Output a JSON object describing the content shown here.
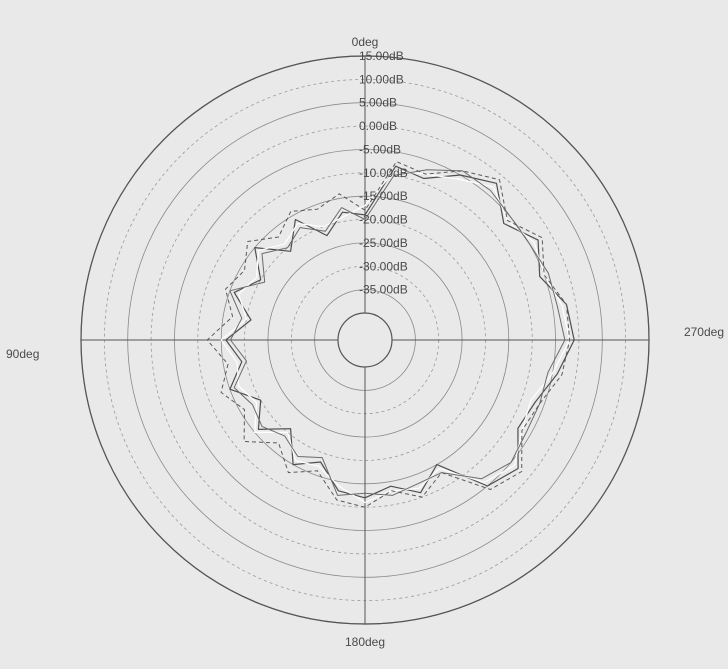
{
  "chart_data": {
    "type": "line",
    "projection": "polar",
    "title": "",
    "angle_direction": "counterclockwise",
    "angle_labels": [
      {
        "deg": 0,
        "text": "0deg"
      },
      {
        "deg": 90,
        "text": "90deg"
      },
      {
        "deg": 180,
        "text": "180deg"
      },
      {
        "deg": 270,
        "text": "270deg"
      }
    ],
    "radial_ticks": [
      {
        "value": 15,
        "text": "15.00dB"
      },
      {
        "value": 10,
        "text": "10.00dB"
      },
      {
        "value": 5,
        "text": "5.00dB"
      },
      {
        "value": 0,
        "text": "0.00dB"
      },
      {
        "value": -5,
        "text": "-5.00dB"
      },
      {
        "value": -10,
        "text": "-10.00dB"
      },
      {
        "value": -15,
        "text": "-15.00dB"
      },
      {
        "value": -20,
        "text": "-20.00dB"
      },
      {
        "value": -25,
        "text": "-25.00dB"
      },
      {
        "value": -30,
        "text": "-30.00dB"
      },
      {
        "value": -35,
        "text": "-35.00dB"
      }
    ],
    "rlim": [
      -40,
      15
    ],
    "grid": true,
    "legend": "none",
    "colors": {
      "background": "#e9e9e9",
      "axis": "#555555",
      "grid_solid": "#8a8a8a",
      "grid_dashed": "#9a9a9a",
      "text": "#4a4a4a"
    },
    "series": [
      {
        "style": {
          "color": "#4f4f4f",
          "dash": "",
          "width": 1.2
        },
        "angles": [
          0,
          10,
          20,
          30,
          40,
          50,
          60,
          70,
          80,
          90,
          100,
          110,
          120,
          130,
          140,
          150,
          160,
          170,
          180,
          190,
          200,
          210,
          220,
          230,
          240,
          250,
          260,
          270,
          280,
          290,
          300,
          310,
          320,
          330,
          340,
          350,
          360
        ],
        "values": [
          -19,
          -18,
          -22,
          -16,
          -21,
          -15,
          -20,
          -16,
          -21,
          -16,
          -19,
          -15,
          -20,
          -16,
          -21,
          -15,
          -18,
          -13,
          -12,
          -14,
          -11,
          -15,
          -5,
          -3,
          -8,
          -7,
          -4,
          -1,
          -2,
          -6,
          -3,
          -7,
          -2,
          -5,
          -9,
          -8,
          -19
        ]
      },
      {
        "style": {
          "color": "#ffffff",
          "dash": "",
          "width": 1.2
        },
        "angles": [
          0,
          10,
          20,
          30,
          40,
          50,
          60,
          70,
          80,
          90,
          100,
          110,
          120,
          130,
          140,
          150,
          160,
          170,
          180,
          190,
          200,
          210,
          220,
          230,
          240,
          250,
          260,
          270,
          280,
          290,
          300,
          310,
          320,
          330,
          340,
          350,
          360
        ],
        "values": [
          -17,
          -19,
          -20,
          -17,
          -19,
          -16,
          -19,
          -17,
          -20,
          -15,
          -18,
          -17,
          -19,
          -15,
          -20,
          -16,
          -17,
          -14,
          -11,
          -13,
          -12,
          -14,
          -6,
          -4,
          -7,
          -8,
          -5,
          -2,
          -3,
          -5,
          -4,
          -6,
          -3,
          -6,
          -8,
          -9,
          -17
        ]
      },
      {
        "style": {
          "color": "#6b6b6b",
          "dash": "",
          "width": 1.0
        },
        "angles": [
          0,
          10,
          20,
          30,
          40,
          50,
          60,
          70,
          80,
          90,
          100,
          110,
          120,
          130,
          140,
          150,
          160,
          170,
          180,
          190,
          200,
          210,
          220,
          230,
          240,
          250,
          260,
          270,
          280,
          290,
          300,
          310,
          320,
          330,
          340,
          350,
          360
        ],
        "values": [
          -20,
          -17,
          -21,
          -18,
          -20,
          -17,
          -21,
          -15,
          -19,
          -17,
          -20,
          -16,
          -18,
          -17,
          -19,
          -17,
          -19,
          -12,
          -13,
          -12,
          -13,
          -13,
          -7,
          -5,
          -6,
          -6,
          -6,
          -3,
          -4,
          -4,
          -5,
          -5,
          -4,
          -4,
          -7,
          -10,
          -20
        ]
      },
      {
        "style": {
          "color": "#5a5a5a",
          "dash": "4 3",
          "width": 1.0
        },
        "angles": [
          0,
          10,
          20,
          30,
          40,
          50,
          60,
          70,
          80,
          90,
          100,
          110,
          120,
          130,
          140,
          150,
          160,
          170,
          180,
          190,
          200,
          210,
          220,
          230,
          240,
          250,
          260,
          270,
          280,
          290,
          300,
          310,
          320,
          330,
          340,
          350,
          360
        ],
        "values": [
          -18,
          -14,
          -16,
          -14,
          -17,
          -13,
          -16,
          -14,
          -17,
          -12,
          -16,
          -13,
          -16,
          -12,
          -17,
          -13,
          -16,
          -11,
          -10,
          -13,
          -10,
          -13,
          -4,
          -2,
          -7,
          -6,
          -3,
          -2,
          -2,
          -5,
          -2,
          -6,
          -1,
          -4,
          -8,
          -7,
          -18
        ]
      }
    ]
  }
}
